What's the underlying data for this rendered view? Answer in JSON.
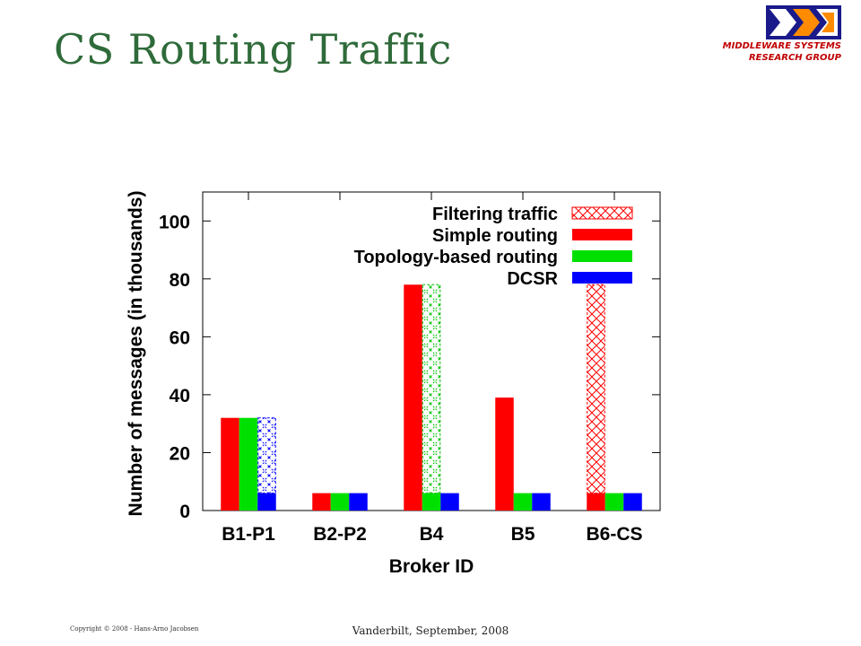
{
  "slide": {
    "title": "CS Routing Traffic",
    "logo_line1": "MIDDLEWARE SYSTEMS",
    "logo_line2": "RESEARCH GROUP",
    "copyright": "Copyright © 2008 - Hans-Arno Jacobsen",
    "venue": "Vanderbilt, September, 2008"
  },
  "chart_data": {
    "type": "bar",
    "title": "",
    "xlabel": "Broker ID",
    "ylabel": "Number of messages (in thousands)",
    "ylim": [
      0,
      110
    ],
    "yticks": [
      0,
      20,
      40,
      60,
      80,
      100
    ],
    "grid": false,
    "legend_position": "top-right",
    "categories": [
      "B1-P1",
      "B2-P2",
      "B4",
      "B5",
      "B6-CS"
    ],
    "series": [
      {
        "name": "Simple routing",
        "color": "#ff0000",
        "pattern": "solid",
        "values": [
          32,
          6,
          78,
          39,
          6
        ]
      },
      {
        "name": "Topology-based routing",
        "color": "#00e000",
        "pattern": "solid",
        "values": [
          32,
          6,
          6,
          6,
          6
        ]
      },
      {
        "name": "DCSR",
        "color": "#0000ff",
        "pattern": "solid",
        "values": [
          6,
          6,
          6,
          6,
          6
        ]
      }
    ],
    "filtering": {
      "name": "Filtering traffic",
      "color": "#ff0000",
      "pattern": "crosshatch",
      "segments": [
        {
          "category": "B1-P1",
          "slot": 2,
          "from": 6,
          "to": 32,
          "color": "#0000ff"
        },
        {
          "category": "B4",
          "slot": 1,
          "from": 6,
          "to": 78,
          "color": "#00c000"
        },
        {
          "category": "B6-CS",
          "slot": 0,
          "from": 6,
          "to": 78,
          "color": "#ff0000"
        }
      ]
    }
  }
}
